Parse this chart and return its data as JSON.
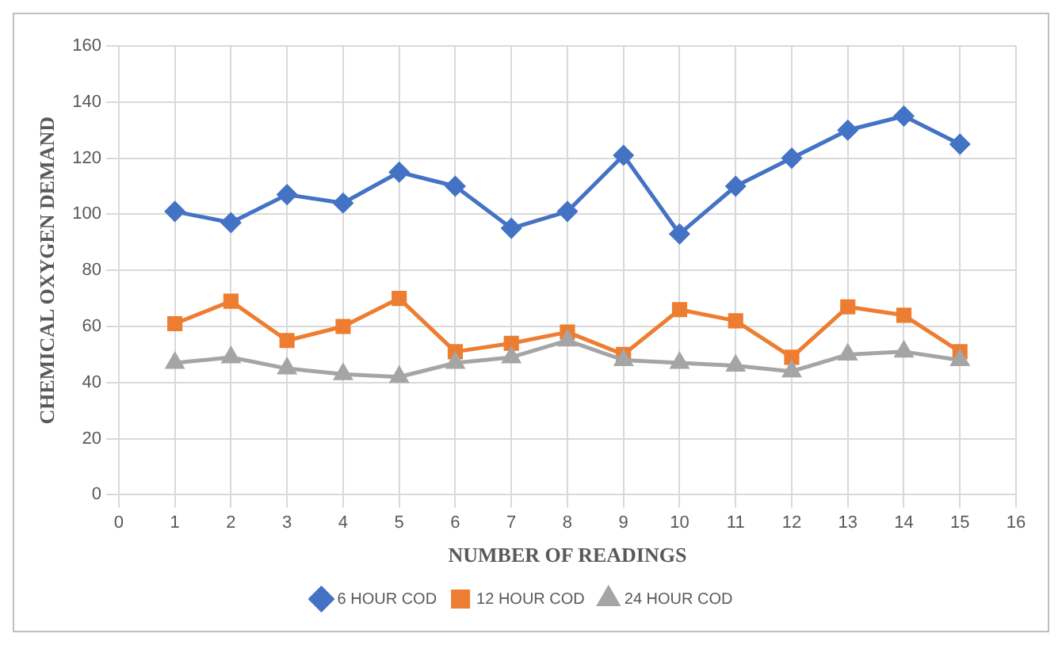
{
  "chart_data": {
    "type": "line",
    "xlabel": "NUMBER OF READINGS",
    "ylabel": "CHEMICAL OXYGEN DEMAND",
    "x": [
      1,
      2,
      3,
      4,
      5,
      6,
      7,
      8,
      9,
      10,
      11,
      12,
      13,
      14,
      15
    ],
    "series": [
      {
        "name": "6 HOUR COD",
        "color": "#4472c4",
        "marker": "diamond",
        "values": [
          101,
          97,
          107,
          104,
          115,
          110,
          95,
          101,
          121,
          93,
          110,
          120,
          130,
          135,
          125
        ]
      },
      {
        "name": "12 HOUR COD",
        "color": "#ed7d31",
        "marker": "square",
        "values": [
          61,
          69,
          55,
          60,
          70,
          51,
          54,
          58,
          50,
          66,
          62,
          49,
          67,
          64,
          51
        ]
      },
      {
        "name": "24 HOUR COD",
        "color": "#a5a5a5",
        "marker": "triangle",
        "values": [
          47,
          49,
          45,
          43,
          42,
          47,
          49,
          55,
          48,
          47,
          46,
          44,
          50,
          51,
          48
        ]
      }
    ],
    "xlim": [
      0,
      16
    ],
    "xticks": [
      0,
      1,
      2,
      3,
      4,
      5,
      6,
      7,
      8,
      9,
      10,
      11,
      12,
      13,
      14,
      15,
      16
    ],
    "ylim": [
      0,
      160
    ],
    "yticks": [
      0,
      20,
      40,
      60,
      80,
      100,
      120,
      140,
      160
    ],
    "grid": true,
    "legend": "bottom",
    "line_style": "solid"
  }
}
